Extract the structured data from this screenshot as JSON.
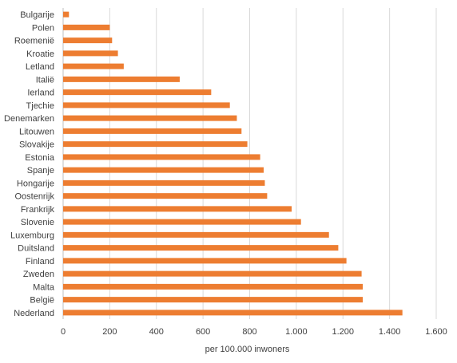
{
  "chart_data": {
    "type": "bar",
    "orientation": "horizontal",
    "categories": [
      "Bulgarije",
      "Polen",
      "Roemenië",
      "Kroatie",
      "Letland",
      "Italië",
      "Ierland",
      "Tjechie",
      "Denemarken",
      "Litouwen",
      "Slovakije",
      "Estonia",
      "Spanje",
      "Hongarije",
      "Oostenrijk",
      "Frankrijk",
      "Slovenie",
      "Luxemburg",
      "Duitsland",
      "Finland",
      "Zweden",
      "Malta",
      "België",
      "Nederland"
    ],
    "values": [
      25,
      200,
      210,
      235,
      260,
      500,
      635,
      715,
      745,
      765,
      790,
      845,
      860,
      865,
      875,
      980,
      1020,
      1140,
      1180,
      1215,
      1280,
      1285,
      1285,
      1455
    ],
    "xlabel": "per 100.000 inwoners",
    "xlim": [
      0,
      1600
    ],
    "xticks": [
      "0",
      "200",
      "400",
      "600",
      "800",
      "1.000",
      "1.200",
      "1.400",
      "1.600"
    ],
    "bar_color": "#ed7d31",
    "grid": true
  }
}
